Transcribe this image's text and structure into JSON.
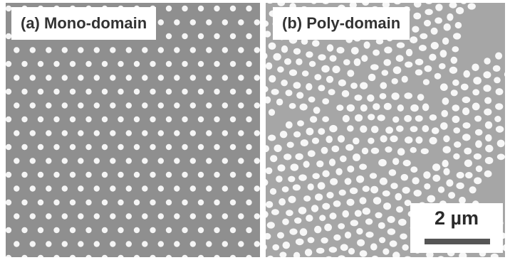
{
  "panels": {
    "a": {
      "label": "(a) Mono-domain",
      "background": "#8f8f8f",
      "dot_color": "#f5f5f5"
    },
    "b": {
      "label": "(b) Poly-domain",
      "background": "#a6a6a6",
      "dot_color": "#f7f7f7"
    }
  },
  "scale_bar": {
    "label": "2 µm",
    "color": "#555555"
  }
}
